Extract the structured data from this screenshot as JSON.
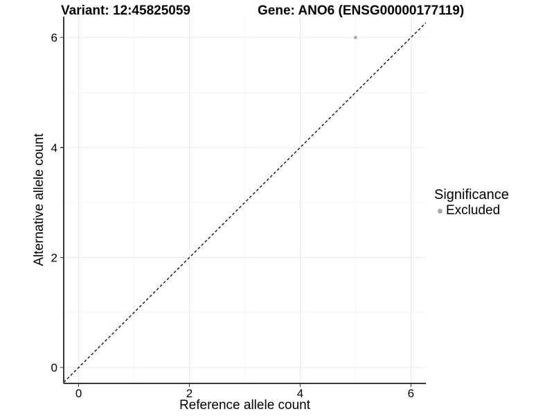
{
  "chart_data": {
    "type": "scatter",
    "titles": {
      "left": "Variant: 12:45825059",
      "right": "Gene: ANO6 (ENSG00000177119)"
    },
    "xlabel": "Reference allele count",
    "ylabel": "Alternative allele count",
    "xlim": [
      -0.27,
      6.27
    ],
    "ylim": [
      -0.29,
      6.38
    ],
    "x_major_ticks": [
      0,
      2,
      4,
      6
    ],
    "y_major_ticks": [
      0,
      2,
      4,
      6
    ],
    "x_minor_gridlines": [
      1,
      3,
      5
    ],
    "y_minor_gridlines": [
      1,
      3,
      5
    ],
    "grid": "on",
    "series": [
      {
        "name": "Excluded",
        "marker_color": "#a8a8a8",
        "points": [
          {
            "x": 5,
            "y": 6
          }
        ]
      }
    ],
    "reference_line": {
      "description": "identity line y = x",
      "slope": 1,
      "intercept": 0,
      "style": "dashed",
      "color": "#000000"
    },
    "legend": {
      "title": "Significance",
      "position": "right",
      "items": [
        {
          "label": "Excluded",
          "marker_color": "#a8a8a8"
        }
      ]
    },
    "colors": {
      "background": "#ffffff",
      "grid_major": "#e9e9e9",
      "grid_minor": "#f4f4f4",
      "axis_line": "#383838",
      "tick_mark": "#333333",
      "text": "#000000"
    }
  }
}
